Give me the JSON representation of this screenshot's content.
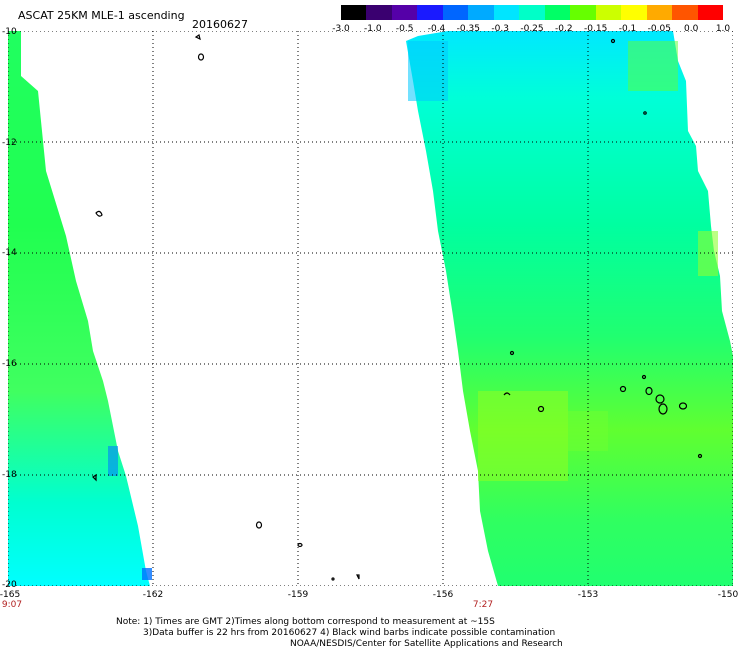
{
  "title": "ASCAT 25KM MLE-1 ascending",
  "date": "20160627",
  "colorbar": {
    "ticks": [
      "-3.0",
      "-1.0",
      "-0.5",
      "-0.4",
      "-0.35",
      "-0.3",
      "-0.25",
      "-0.2",
      "-0.15",
      "-0.1",
      "-0.05",
      "0.0",
      "1.0"
    ],
    "colors": [
      "#000000",
      "#3a0070",
      "#5500a8",
      "#1a1aff",
      "#0066ff",
      "#00aaff",
      "#00e5ff",
      "#00ffc8",
      "#00ff66",
      "#66ff00",
      "#ccff00",
      "#ffff00",
      "#ffaa00",
      "#ff5500",
      "#ff0000"
    ]
  },
  "axes": {
    "lat_ticks": [
      "-10",
      "-12",
      "-14",
      "-16",
      "-18",
      "-20"
    ],
    "lon_ticks": [
      "-165",
      "-162",
      "-159",
      "-156",
      "-153",
      "-150"
    ],
    "lat_range": [
      -20,
      -10
    ],
    "lon_range": [
      -165,
      -150
    ]
  },
  "times": {
    "left": "9:07",
    "mid": "7:27"
  },
  "notes": {
    "line1": "Note: 1) Times are GMT 2)Times along bottom correspond to measurement at ~15S",
    "line2": "3)Data buffer is 22 hrs from 20160627 4) Black wind barbs indicate possible contamination",
    "line3": "NOAA/NESDIS/Center for Satellite Applications and Research"
  },
  "colors": {
    "swath_cyan": "#00ffff",
    "swath_aqua": "#00ffd0",
    "swath_green": "#00ff80",
    "swath_lime": "#40ff40",
    "swath_yellowgreen": "#a0ff20",
    "time_label": "#b22222",
    "gridline": "#000000"
  }
}
